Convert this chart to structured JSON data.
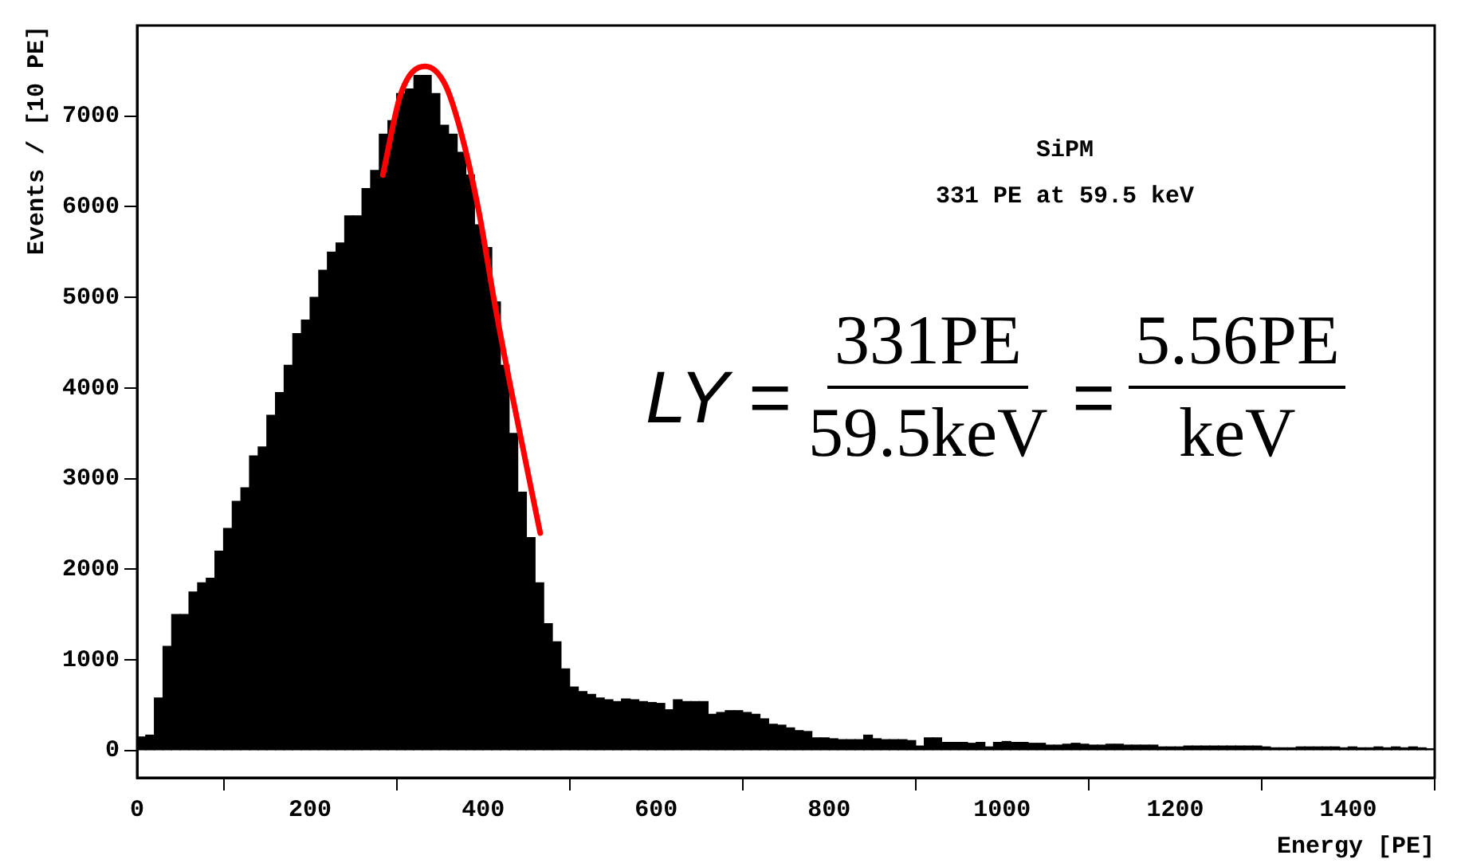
{
  "chart_data": {
    "type": "histogram",
    "xlabel": "Energy [PE]",
    "ylabel": "Events / [10 PE]",
    "annotations": [
      "SiPM",
      "331 PE at 59.5 keV",
      "LY =",
      "331PE",
      "59.5keV",
      "=",
      "5.56PE",
      "keV"
    ],
    "bins": [
      0,
      10,
      20,
      30,
      40,
      50,
      60,
      70,
      80,
      90,
      100,
      110,
      120,
      130,
      140,
      150,
      160,
      170,
      180,
      190,
      200,
      210,
      220,
      230,
      240,
      250,
      260,
      270,
      280,
      290,
      300,
      310,
      320,
      330,
      340,
      350,
      360,
      370,
      380,
      390,
      400,
      410,
      420,
      430,
      440,
      450,
      460,
      470,
      480,
      490,
      500,
      510,
      520,
      530,
      540,
      550,
      560,
      570,
      580,
      590,
      600,
      610,
      620,
      630,
      640,
      650,
      660,
      670,
      680,
      690,
      700,
      710,
      720,
      730,
      740,
      750,
      760,
      770,
      780,
      790,
      800,
      810,
      820,
      830,
      840,
      850,
      860,
      870,
      880,
      890,
      900,
      910,
      920,
      930,
      940,
      950,
      960,
      970,
      980,
      990,
      1000,
      1010,
      1020,
      1030,
      1040,
      1050,
      1060,
      1070,
      1080,
      1090,
      1100,
      1110,
      1120,
      1130,
      1140,
      1150,
      1160,
      1170,
      1180,
      1190,
      1200,
      1210,
      1220,
      1230,
      1240,
      1250,
      1260,
      1270,
      1280,
      1290,
      1300,
      1310,
      1320,
      1330,
      1340,
      1350,
      1360,
      1370,
      1380,
      1390,
      1400,
      1410,
      1420,
      1430,
      1440,
      1450,
      1460,
      1470,
      1480,
      1490,
      1500
    ],
    "values": [
      150,
      170,
      580,
      1150,
      1500,
      1500,
      1750,
      1850,
      1900,
      2200,
      2450,
      2750,
      2900,
      3250,
      3350,
      3700,
      3950,
      4250,
      4600,
      4750,
      5000,
      5300,
      5500,
      5600,
      5900,
      5900,
      6200,
      6400,
      6800,
      6950,
      7250,
      7300,
      7450,
      7450,
      7250,
      6900,
      6800,
      6600,
      6350,
      5800,
      5550,
      4950,
      4250,
      3500,
      2850,
      2350,
      1850,
      1400,
      1200,
      900,
      700,
      650,
      620,
      580,
      560,
      540,
      570,
      560,
      540,
      530,
      520,
      450,
      560,
      540,
      540,
      540,
      400,
      420,
      440,
      440,
      420,
      400,
      350,
      290,
      280,
      250,
      220,
      210,
      140,
      140,
      130,
      120,
      120,
      120,
      170,
      130,
      120,
      120,
      120,
      110,
      50,
      140,
      140,
      90,
      90,
      90,
      80,
      90,
      40,
      90,
      100,
      90,
      90,
      80,
      80,
      60,
      60,
      70,
      80,
      70,
      60,
      60,
      70,
      70,
      60,
      60,
      60,
      60,
      40,
      40,
      40,
      50,
      50,
      50,
      50,
      50,
      50,
      50,
      50,
      50,
      40,
      30,
      30,
      30,
      40,
      40,
      40,
      40,
      40,
      30,
      40,
      30,
      30,
      40,
      30,
      40,
      30,
      40,
      30,
      20
    ],
    "color": "#000000",
    "series": [
      {
        "type": "line",
        "color": "#ff0000",
        "x": [
          284,
          305,
          333,
          356,
          375,
          395,
          414,
          433,
          466
        ],
        "values": [
          6350,
          7250,
          7550,
          7350,
          6800,
          5950,
          4900,
          3950,
          2400
        ]
      }
    ],
    "xlim": [
      0,
      1500
    ],
    "xticks": [
      0,
      200,
      400,
      600,
      800,
      1000,
      1200,
      1400
    ],
    "ylim": [
      -300,
      8000
    ],
    "yticks": [
      0,
      1000,
      2000,
      3000,
      4000,
      5000,
      6000,
      7000
    ],
    "grid": false,
    "legend": false
  }
}
